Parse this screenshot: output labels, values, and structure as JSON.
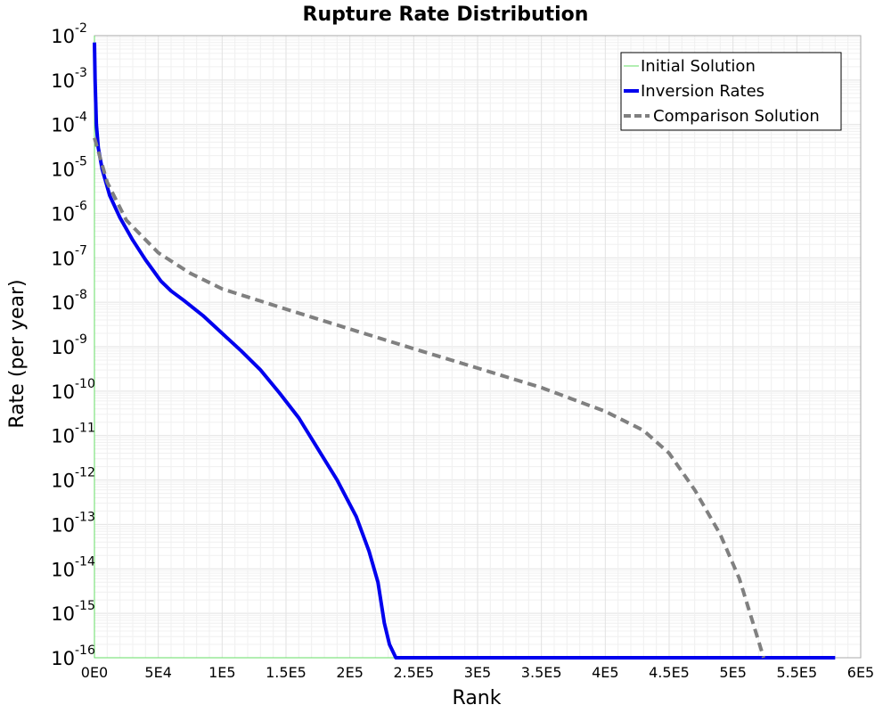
{
  "chart_data": {
    "type": "line",
    "title": "Rupture Rate Distribution",
    "xlabel": "Rank",
    "ylabel": "Rate (per year)",
    "xlim": [
      0,
      600000
    ],
    "ylim": [
      1e-16,
      0.01
    ],
    "yscale": "log",
    "grid": true,
    "legend_position": "top-right",
    "x_ticks": [
      0,
      50000,
      100000,
      150000,
      200000,
      250000,
      300000,
      350000,
      400000,
      450000,
      500000,
      550000,
      600000
    ],
    "x_tick_labels": [
      "0E0",
      "5E4",
      "1E5",
      "1.5E5",
      "2E5",
      "2.5E5",
      "3E5",
      "3.5E5",
      "4E5",
      "4.5E5",
      "5E5",
      "5.5E5",
      "6E5"
    ],
    "y_tick_exponents": [
      -2,
      -3,
      -4,
      -5,
      -6,
      -7,
      -8,
      -9,
      -10,
      -11,
      -12,
      -13,
      -14,
      -15,
      -16
    ],
    "y_tick_base": "10",
    "series": [
      {
        "name": "Initial Solution",
        "color": "#66dd66",
        "style": "solid",
        "width": 1,
        "points": [
          [
            0,
            0.01
          ],
          [
            0,
            1e-16
          ],
          [
            580000,
            1e-16
          ]
        ]
      },
      {
        "name": "Inversion Rates",
        "color": "#0000ee",
        "style": "solid",
        "width": 4,
        "points": [
          [
            0,
            0.007
          ],
          [
            500,
            0.001
          ],
          [
            1500,
            0.0001
          ],
          [
            3000,
            3e-05
          ],
          [
            6000,
            1e-05
          ],
          [
            12000,
            2.5e-06
          ],
          [
            20000,
            8e-07
          ],
          [
            30000,
            2.5e-07
          ],
          [
            40000,
            9e-08
          ],
          [
            52000,
            3e-08
          ],
          [
            60000,
            1.8e-08
          ],
          [
            70000,
            1.1e-08
          ],
          [
            85000,
            5e-09
          ],
          [
            100000,
            2e-09
          ],
          [
            115000,
            8e-10
          ],
          [
            130000,
            3e-10
          ],
          [
            145000,
            9e-11
          ],
          [
            160000,
            2.5e-11
          ],
          [
            175000,
            5e-12
          ],
          [
            190000,
            1e-12
          ],
          [
            205000,
            1.5e-13
          ],
          [
            215000,
            2.5e-14
          ],
          [
            222000,
            5e-15
          ],
          [
            227000,
            6e-16
          ],
          [
            231000,
            2e-16
          ],
          [
            236000,
            1e-16
          ],
          [
            580000,
            1e-16
          ]
        ]
      },
      {
        "name": "Comparison Solution",
        "color": "#808080",
        "style": "dashed",
        "width": 4,
        "points": [
          [
            0,
            5e-05
          ],
          [
            10000,
            5e-06
          ],
          [
            25000,
            7e-07
          ],
          [
            50000,
            1.3e-07
          ],
          [
            75000,
            4.5e-08
          ],
          [
            100000,
            2e-08
          ],
          [
            150000,
            7e-09
          ],
          [
            200000,
            2.5e-09
          ],
          [
            250000,
            9e-10
          ],
          [
            300000,
            3.3e-10
          ],
          [
            350000,
            1.2e-10
          ],
          [
            400000,
            3.5e-11
          ],
          [
            430000,
            1.3e-11
          ],
          [
            450000,
            4e-12
          ],
          [
            470000,
            6e-13
          ],
          [
            490000,
            6e-14
          ],
          [
            505000,
            6e-15
          ],
          [
            515000,
            7e-16
          ],
          [
            524000,
            1e-16
          ]
        ]
      }
    ]
  }
}
